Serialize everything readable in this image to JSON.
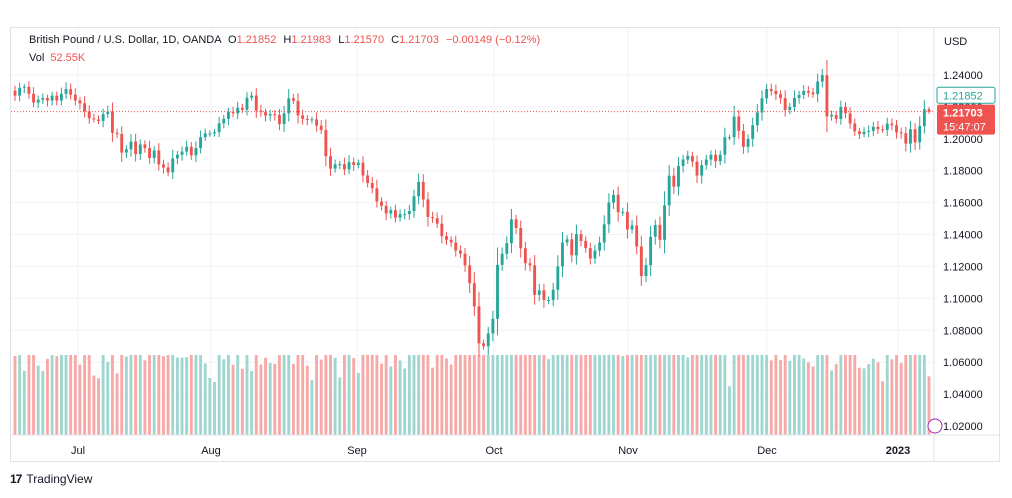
{
  "header": {
    "symbol": "British Pound / U.S. Dollar, 1D, OANDA",
    "open_label": "O",
    "open": "1.21852",
    "high_label": "H",
    "high": "1.21983",
    "low_label": "L",
    "low": "1.21570",
    "close_label": "C",
    "close": "1.21703",
    "change": "−0.00149 (−0.12%)",
    "vol_label": "Vol",
    "vol": "52.55K"
  },
  "price_axis": {
    "currency": "USD",
    "ticks": [
      "1.24000",
      "1.22000",
      "1.20000",
      "1.18000",
      "1.16000",
      "1.14000",
      "1.12000",
      "1.10000",
      "1.08000",
      "1.06000",
      "1.04000",
      "1.02000"
    ],
    "open_tag": "1.21852",
    "close_tag": "1.21703",
    "countdown": "15:47:07"
  },
  "time_axis": {
    "labels": [
      "Jul",
      "Aug",
      "Sep",
      "Oct",
      "Nov",
      "Dec",
      "2023"
    ]
  },
  "footer": {
    "brand": "TradingView"
  },
  "colors": {
    "up": "#26a69a",
    "down": "#ef5350",
    "vol_up": "#9fd6cf",
    "vol_down": "#f7a9a7",
    "grid": "#f0f3fa"
  },
  "chart_data": {
    "type": "candlestick",
    "symbol": "GBPUSD",
    "ylim": [
      1.015,
      1.25
    ],
    "closes": [
      1.2271,
      1.232,
      1.2326,
      1.2282,
      1.2227,
      1.2246,
      1.2256,
      1.224,
      1.227,
      1.224,
      1.2282,
      1.2312,
      1.2277,
      1.224,
      1.2222,
      1.2172,
      1.2128,
      1.2121,
      1.2112,
      1.2155,
      1.217,
      1.2038,
      1.203,
      1.1914,
      1.1934,
      1.1983,
      1.1905,
      1.1965,
      1.1942,
      1.188,
      1.1927,
      1.184,
      1.182,
      1.179,
      1.1877,
      1.19,
      1.192,
      1.195,
      1.1897,
      1.1942,
      1.201,
      1.2034,
      1.2034,
      1.2042,
      1.2097,
      1.2125,
      1.2168,
      1.216,
      1.2194,
      1.2182,
      1.2257,
      1.2271,
      1.2177,
      1.2167,
      1.2146,
      1.2155,
      1.215,
      1.2093,
      1.216,
      1.2254,
      1.2238,
      1.2147,
      1.2125,
      1.2119,
      1.2122,
      1.2082,
      1.2055,
      1.1891,
      1.1813,
      1.184,
      1.1841,
      1.1808,
      1.1854,
      1.1836,
      1.185,
      1.177,
      1.1723,
      1.169,
      1.1607,
      1.158,
      1.1532,
      1.1553,
      1.1506,
      1.1528,
      1.1528,
      1.1547,
      1.164,
      1.173,
      1.162,
      1.151,
      1.1503,
      1.1468,
      1.139,
      1.1367,
      1.135,
      1.13,
      1.128,
      1.1207,
      1.1095,
      1.095,
      1.0718,
      1.07,
      1.078,
      1.0872,
      1.121,
      1.128,
      1.1346,
      1.1495,
      1.1441,
      1.1314,
      1.122,
      1.1207,
      1.1022,
      1.105,
      1.099,
      1.099,
      1.1054,
      1.12,
      1.135,
      1.137,
      1.127,
      1.1403,
      1.136,
      1.1315,
      1.125,
      1.13,
      1.135,
      1.1464,
      1.16,
      1.1649,
      1.154,
      1.1542,
      1.1432,
      1.1457,
      1.1325,
      1.114,
      1.1208,
      1.1386,
      1.146,
      1.1367,
      1.1583,
      1.1769,
      1.17,
      1.183,
      1.187,
      1.1893,
      1.1857,
      1.177,
      1.1835,
      1.187,
      1.19,
      1.186,
      1.19,
      1.201,
      1.201,
      1.214,
      1.205,
      1.195,
      1.2,
      1.2085,
      1.2165,
      1.2254,
      1.2312,
      1.23,
      1.228,
      1.2255,
      1.218,
      1.22,
      1.2256,
      1.2275,
      1.23,
      1.229,
      1.228,
      1.2359,
      1.2399,
      1.214,
      1.215,
      1.2125,
      1.22,
      1.216,
      1.2096,
      1.2047,
      1.203,
      1.2044,
      1.205,
      1.2075,
      1.206,
      1.2056,
      1.2095,
      1.2085,
      1.204,
      1.2035,
      1.197,
      1.206,
      1.1978,
      1.208,
      1.2185,
      1.217
    ],
    "x_labels": [
      "Jul",
      "Aug",
      "Sep",
      "Oct",
      "Nov",
      "Dec",
      "2023"
    ],
    "y_ticks": [
      1.24,
      1.22,
      1.2,
      1.18,
      1.16,
      1.14,
      1.12,
      1.1,
      1.08,
      1.06,
      1.04,
      1.02
    ],
    "last": {
      "open": 1.21852,
      "high": 1.21983,
      "low": 1.2157,
      "close": 1.21703,
      "change": -0.00149,
      "change_pct": -0.12,
      "volume": "52.55K"
    }
  }
}
